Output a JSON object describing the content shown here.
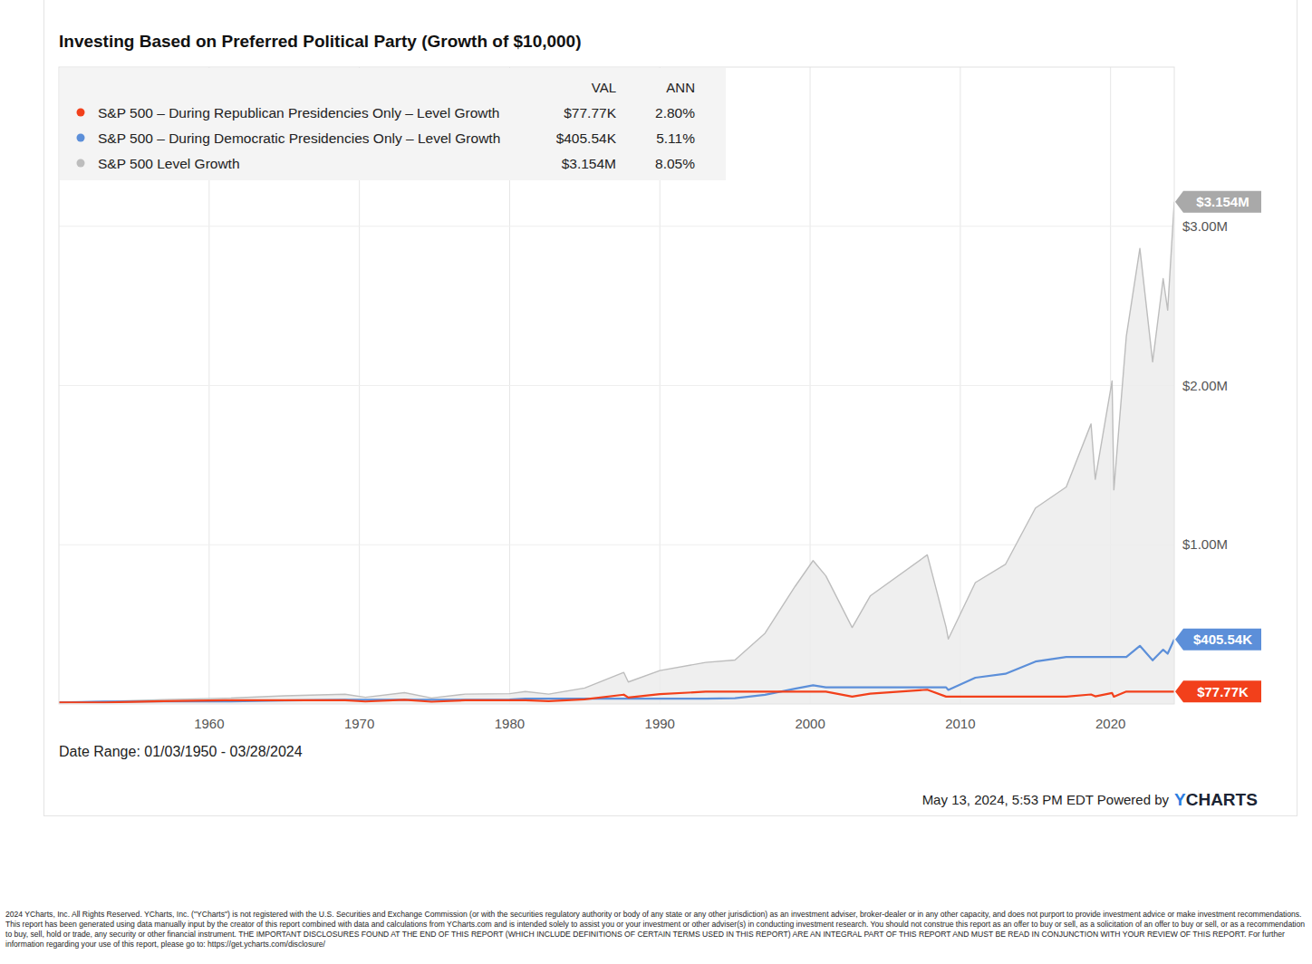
{
  "chart_data": {
    "type": "line",
    "title": "Investing Based on Preferred Political Party (Growth of $10,000)",
    "annotations": [
      "Date Range: 01/03/1950 - 03/28/2024"
    ],
    "legend": "upper left",
    "legend_columns": [
      "VAL",
      "ANN"
    ],
    "grid": true,
    "x": [
      1950,
      1953.05,
      1955,
      1957,
      1961.05,
      1965,
      1969.05,
      1970.4,
      1973,
      1974.8,
      1977.05,
      1980,
      1981.05,
      1982.6,
      1985,
      1987.6,
      1987.9,
      1990,
      1993.05,
      1995,
      1997,
      1999,
      2000.2,
      2001.05,
      2002.8,
      2004,
      2007.8,
      2009.05,
      2009.2,
      2011,
      2013,
      2015,
      2017.05,
      2018.7,
      2018.98,
      2020.1,
      2020.22,
      2021.05,
      2021.95,
      2022.8,
      2023.5,
      2023.8,
      2024.24
    ],
    "xlim": [
      1950,
      2024.24
    ],
    "xticks": [
      1960,
      1970,
      1980,
      1990,
      2000,
      2010,
      2020
    ],
    "ylim": [
      0,
      4000000
    ],
    "yticks": [
      {
        "value": 1000000,
        "label": "$1.00M"
      },
      {
        "value": 2000000,
        "label": "$2.00M"
      },
      {
        "value": 3000000,
        "label": "$3.00M"
      }
    ],
    "series": [
      {
        "name": "S&P 500 – During Republican Presidencies Only – Level Growth",
        "color": "#f2401b",
        "type": "line",
        "legend_values": [
          "$77.77K",
          "2.80%"
        ],
        "values": [
          10000,
          10000,
          13790,
          17620,
          22990,
          22990,
          22990,
          15780,
          26600,
          14200,
          23210,
          23210,
          23210,
          18300,
          29590,
          58470,
          40750,
          62010,
          77070,
          77070,
          77070,
          77070,
          77070,
          77070,
          46010,
          64990,
          89730,
          46300,
          46300,
          46300,
          46300,
          46300,
          46300,
          59760,
          47930,
          68940,
          45690,
          77770,
          77770,
          77770,
          77770,
          77770,
          77770
        ]
      },
      {
        "name": "S&P 500 – During Democratic Presidencies Only – Level Growth",
        "color": "#5c8fd9",
        "type": "line",
        "legend_values": [
          "$405.54K",
          "5.11%"
        ],
        "values": [
          10000,
          15700,
          15700,
          15700,
          15700,
          22240,
          26690,
          26690,
          26690,
          26690,
          26690,
          27990,
          33950,
          33950,
          33950,
          33950,
          33950,
          33950,
          33950,
          35900,
          57760,
          96000,
          117070,
          104580,
          104580,
          104580,
          104580,
          104580,
          88340,
          164990,
          189670,
          266320,
          294900,
          294900,
          294900,
          294900,
          294900,
          294900,
          365060,
          274220,
          340860,
          315580,
          405540
        ]
      },
      {
        "name": "S&P 500 Level Growth",
        "color": "#bdbdbd",
        "type": "area",
        "legend_values": [
          "$3.154M",
          "8.05%"
        ],
        "values": [
          10000,
          15700,
          21600,
          27600,
          36000,
          51000,
          61200,
          42000,
          70800,
          37800,
          61800,
          64800,
          78600,
          61800,
          100300,
          198100,
          138100,
          210100,
          261100,
          276100,
          444200,
          738400,
          900500,
          804400,
          480200,
          678300,
          936500,
          483200,
          408200,
          762400,
          876400,
          1230600,
          1362700,
          1758900,
          1410700,
          2029000,
          1344700,
          2311200,
          2861000,
          2149100,
          2671300,
          2473200,
          3154000
        ]
      }
    ]
  },
  "footer": {
    "timestamp": "May 13, 2024, 5:53 PM EDT Powered by",
    "brand": "YCHARTS",
    "disclaimer": "2024 YCharts, Inc. All Rights Reserved. YCharts, Inc. (\"YCharts\") is not registered with the U.S. Securities and Exchange Commission (or with the securities regulatory authority or body of any state or any other jurisdiction) as an investment adviser, broker-dealer or in any other capacity, and does not purport to provide investment advice or make investment recommendations. This report has been generated using data manually input by the creator of this report combined with data and calculations from YCharts.com and is intended solely to assist you or your investment or other adviser(s) in conducting investment research. You should not construe this report as an offer to buy or sell, as a solicitation of an offer to buy or sell, or as a recommendation to buy, sell, hold or trade, any security or other financial instrument. THE IMPORTANT DISCLOSURES FOUND AT THE END OF THIS REPORT (WHICH INCLUDE DEFINITIONS OF CERTAIN TERMS USED IN THIS REPORT) ARE AN INTEGRAL PART OF THIS REPORT AND MUST BE READ IN CONJUNCTION WITH YOUR REVIEW OF THIS REPORT. For further information regarding your use of this report, please go to: https://get.ycharts.com/disclosure/"
  }
}
